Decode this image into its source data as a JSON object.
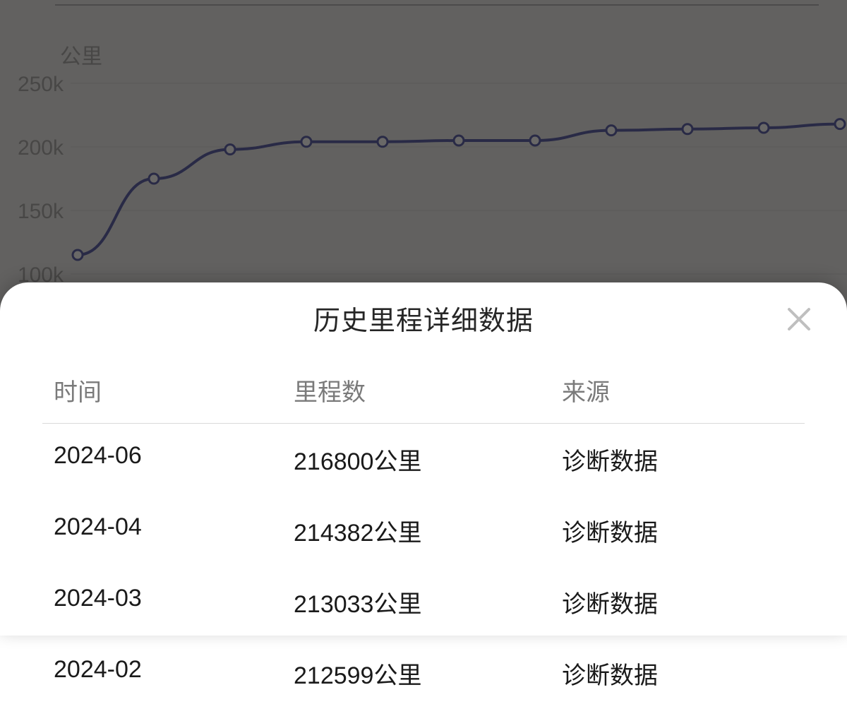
{
  "chart": {
    "type": "line",
    "y_axis_label": "公里",
    "y_ticks": [
      "250k",
      "200k",
      "150k",
      "100k"
    ],
    "y_tick_values": [
      250,
      200,
      150,
      100
    ],
    "ylim": [
      100,
      260
    ],
    "values": [
      115,
      175,
      198,
      204,
      204,
      205,
      205,
      213,
      214,
      215,
      218
    ],
    "line_color": "#2a2e6a",
    "line_width": 4,
    "marker_radius": 7,
    "marker_fill": "#b8b6b4",
    "marker_stroke": "#2a2e6a",
    "marker_stroke_width": 3,
    "grid_color": "#8a8886",
    "background_color": "#a8a6a4"
  },
  "modal": {
    "title": "历史里程详细数据",
    "columns": {
      "time": "时间",
      "mileage": "里程数",
      "source": "来源"
    },
    "rows": [
      {
        "time": "2024-06",
        "mileage": "216800公里",
        "source": "诊断数据"
      },
      {
        "time": "2024-04",
        "mileage": "214382公里",
        "source": "诊断数据"
      },
      {
        "time": "2024-03",
        "mileage": "213033公里",
        "source": "诊断数据"
      },
      {
        "time": "2024-02",
        "mileage": "212599公里",
        "source": "诊断数据"
      }
    ],
    "title_color": "#262626",
    "header_color": "#7a7a7a",
    "text_color": "#1a1a1a",
    "divider_color": "#d9d9d9",
    "close_icon_color": "#bfbfbf",
    "sheet_bg": "#ffffff"
  }
}
